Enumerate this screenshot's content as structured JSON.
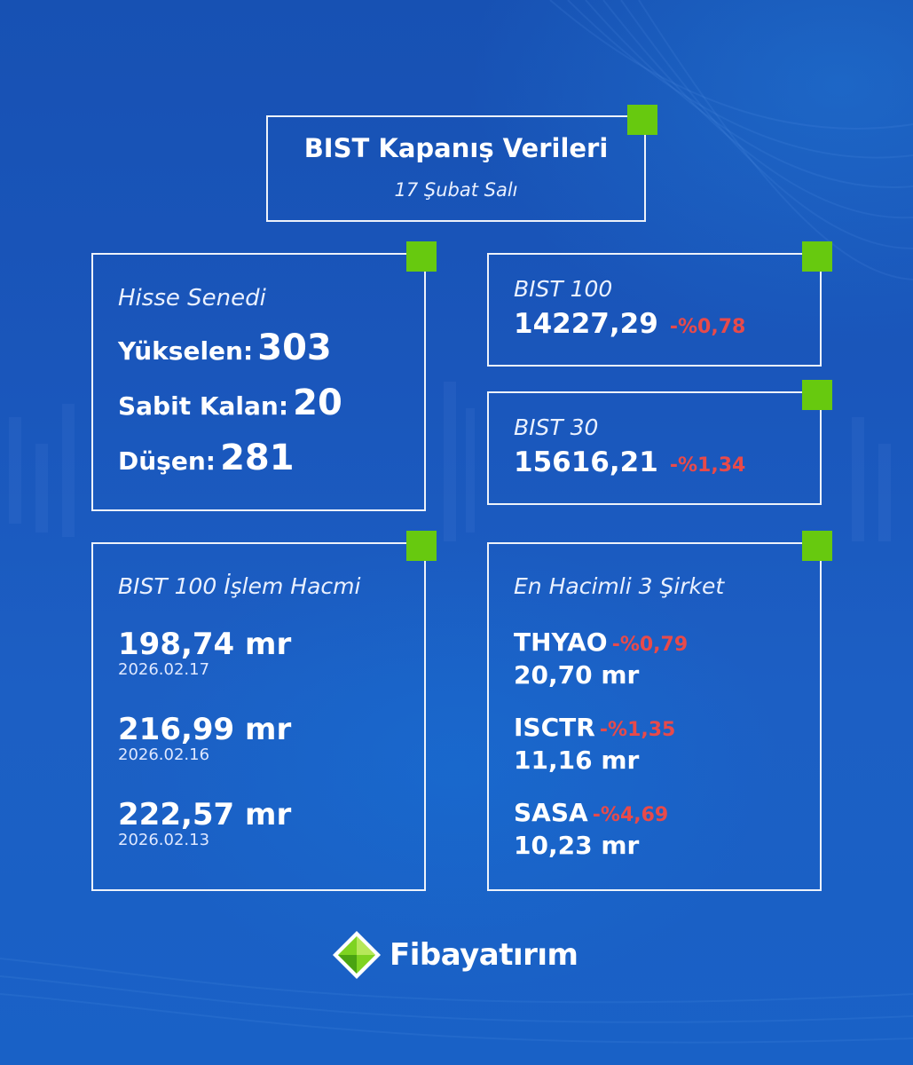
{
  "header": {
    "title": "BIST Kapanış Verileri",
    "date": "17 Şubat Salı"
  },
  "stocks": {
    "label": "Hisse Senedi",
    "rising_label": "Yükselen:",
    "rising_value": "303",
    "flat_label": "Sabit Kalan:",
    "flat_value": "20",
    "falling_label": "Düşen:",
    "falling_value": "281"
  },
  "bist100": {
    "label": "BIST 100",
    "value": "14227,29",
    "change": "-%0,78"
  },
  "bist30": {
    "label": "BIST 30",
    "value": "15616,21",
    "change": "-%1,34"
  },
  "volume": {
    "label": "BIST 100 İşlem Hacmi",
    "entries": [
      {
        "amount": "198,74 mr",
        "date": "2026.02.17"
      },
      {
        "amount": "216,99 mr",
        "date": "2026.02.16"
      },
      {
        "amount": "222,57 mr",
        "date": "2026.02.13"
      }
    ]
  },
  "top3": {
    "label": "En Hacimli 3 Şirket",
    "companies": [
      {
        "ticker": "THYAO",
        "change": "-%0,79",
        "volume": "20,70 mr"
      },
      {
        "ticker": "ISCTR",
        "change": "-%1,35",
        "volume": "11,16 mr"
      },
      {
        "ticker": "SASA",
        "change": "-%4,69",
        "volume": "10,23 mr"
      }
    ]
  },
  "brand": {
    "name": "Fibayatırım"
  },
  "colors": {
    "background": "#1a56bb",
    "accent_green": "#67c90f",
    "negative_red": "#e84a4a"
  }
}
